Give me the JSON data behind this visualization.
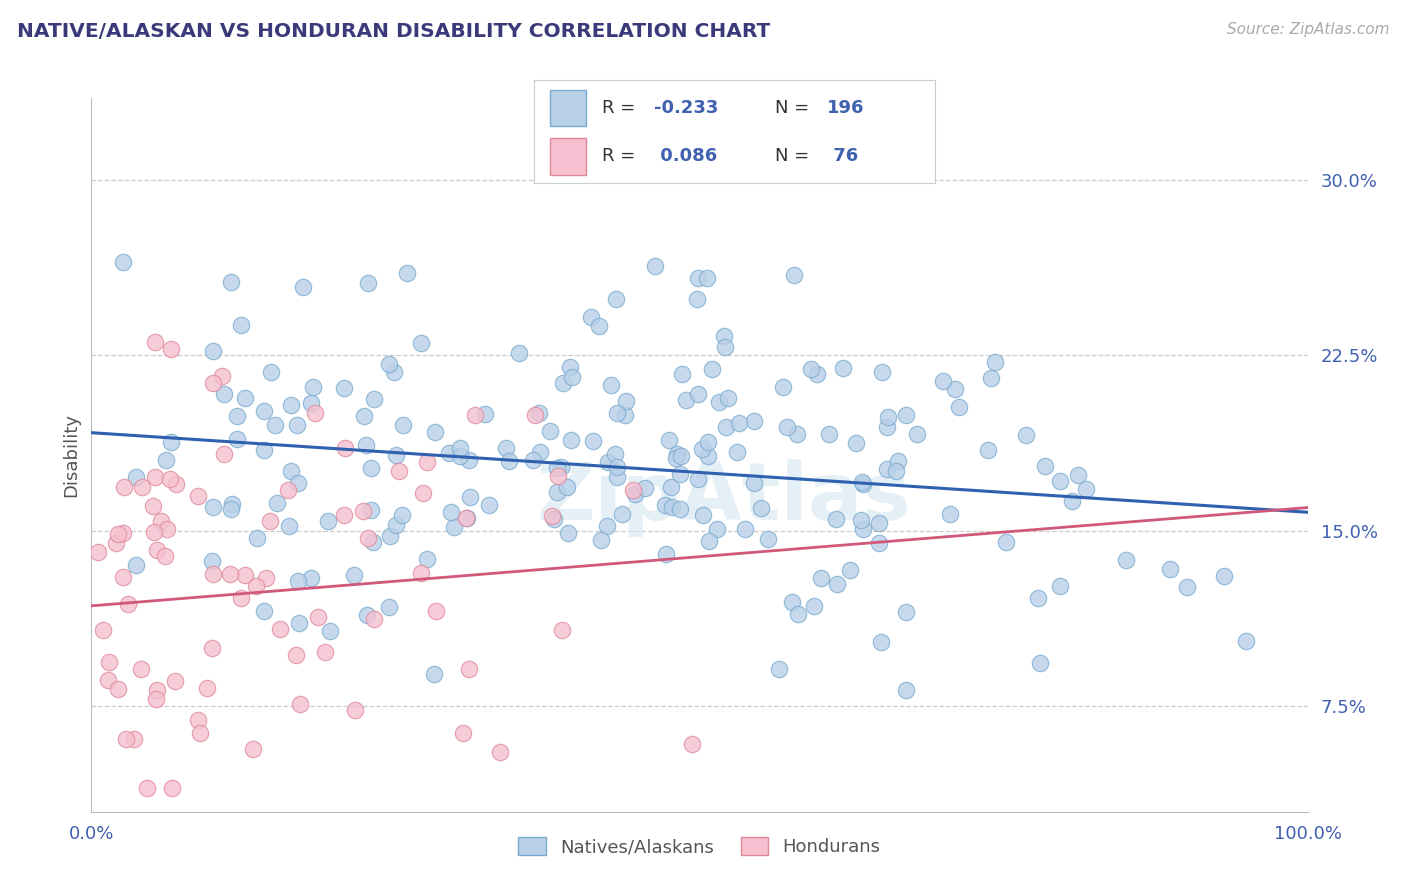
{
  "title": "NATIVE/ALASKAN VS HONDURAN DISABILITY CORRELATION CHART",
  "source_text": "Source: ZipAtlas.com",
  "ylabel": "Disability",
  "xlim": [
    0.0,
    1.0
  ],
  "ylim": [
    0.03,
    0.335
  ],
  "yticks": [
    0.075,
    0.15,
    0.225,
    0.3
  ],
  "ytick_labels": [
    "7.5%",
    "15.0%",
    "22.5%",
    "30.0%"
  ],
  "xtick_labels": [
    "0.0%",
    "100.0%"
  ],
  "blue_fill": "#b8d0e8",
  "blue_edge": "#7aaad0",
  "pink_fill": "#f5c0d0",
  "pink_edge": "#e08898",
  "blue_line": "#3060b0",
  "pink_line": "#d05878",
  "grid_color": "#cccccc",
  "title_color": "#3a3a7a",
  "ylabel_color": "#555555",
  "tick_color": "#4060b0",
  "source_color": "#aaaaaa",
  "watermark_color": "#d0e4f0",
  "R1": -0.233,
  "R2": 0.086,
  "N1": 196,
  "N2": 76,
  "blue_line_y0": 0.192,
  "blue_line_y1": 0.158,
  "pink_line_y0": 0.118,
  "pink_line_y1": 0.16,
  "pink_line_xmax": 1.0,
  "background": "#ffffff"
}
